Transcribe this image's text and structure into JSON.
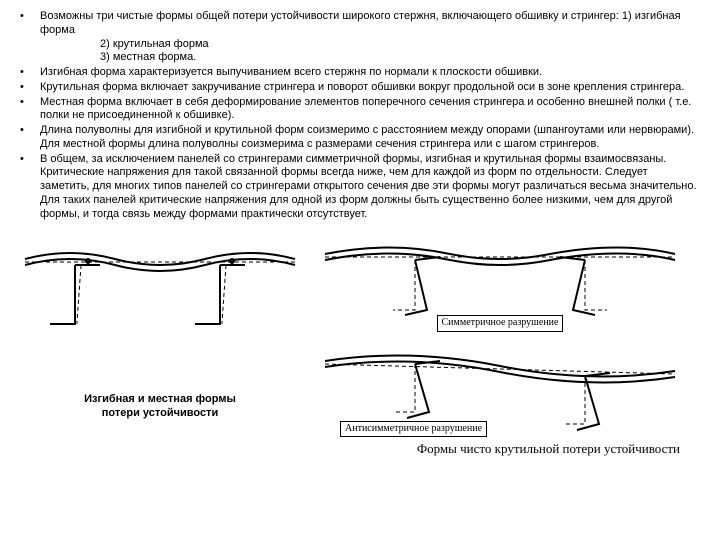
{
  "bullets": [
    {
      "text": "Возможны три чистые формы общей потери устойчивости широкого стержня, включающего обшивку и стрингер:   1) изгибная форма",
      "sublines": [
        "2) крутильная форма",
        "3) местная форма."
      ]
    },
    {
      "text": "Изгибная форма характеризуется выпучиванием всего стержня по нормали к плоскости обшивки."
    },
    {
      "text": "Крутильная форма включает закручивание стрингера и поворот обшивки вокруг продольной оси в зоне крепления стрингера."
    },
    {
      "text": "Местная форма включает в себя деформирование элементов поперечного сечения стрингера и особенно внешней полки ( т.е. полки не присоединенной к обшивке)."
    },
    {
      "text": "Длина полуволны для изгибной и крутильной форм соизмеримо с расстоянием между опорами (шпангоутами или нервюрами). Для местной формы длина полуволны соизмерима с размерами сечения стрингера или с шагом стрингеров."
    },
    {
      "text": "В общем, за исключением панелей со стрингерами симметричной формы, изгибная и крутильная формы взаимосвязаны. Критические напряжения для такой связанной формы всегда ниже, чем для каждой из форм по отдельности. Следует заметить, для многих типов панелей со стрингерами открытого сечения две эти формы могут различаться весьма значительно. Для таких панелей критические напряжения для одной из форм должны быть существенно более низкими, чем для другой формы, и тогда связь между формами практически отсутствует."
    }
  ],
  "caption_left_l1": "Изгибная и местная формы",
  "caption_left_l2": "потери устойчивости",
  "sublabel_sym": "Симметричное разрушение",
  "sublabel_asym": "Антисимметричное разрушение",
  "caption_right": "Формы чисто крутильной потери устойчивости",
  "stroke": "#000000",
  "dash": "4,3"
}
